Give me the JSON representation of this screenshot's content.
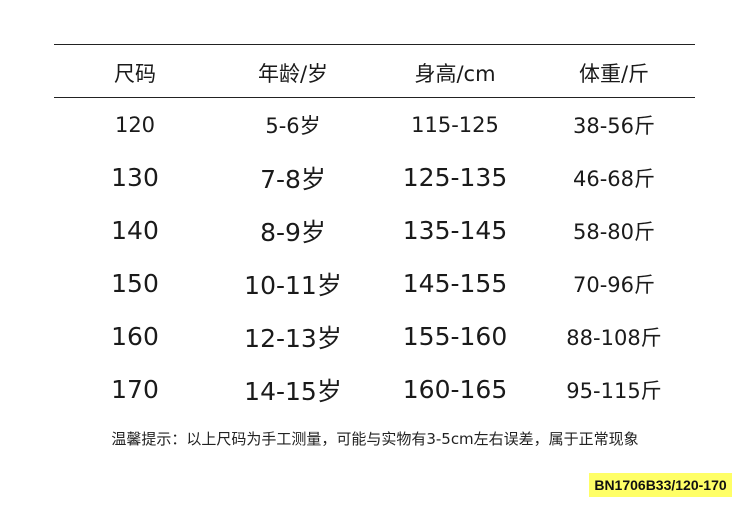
{
  "table": {
    "headers": [
      "尺码",
      "年龄/岁",
      "身高/cm",
      "体重/斤"
    ],
    "rows": [
      [
        "120",
        "5-6岁",
        "115-125",
        "38-56斤"
      ],
      [
        "130",
        "7-8岁",
        "125-135",
        "46-68斤"
      ],
      [
        "140",
        "8-9岁",
        "135-145",
        "58-80斤"
      ],
      [
        "150",
        "10-11岁",
        "145-155",
        "70-96斤"
      ],
      [
        "160",
        "12-13岁",
        "155-160",
        "88-108斤"
      ],
      [
        "170",
        "14-15岁",
        "160-165",
        "95-115斤"
      ]
    ]
  },
  "note": "温馨提示：以上尺码为手工测量，可能与实物有3-5cm左右误差，属于正常现象",
  "product_code": "BN1706B33/120-170",
  "colors": {
    "badge_bg": "#ffff66",
    "text": "#1a1a1a"
  }
}
